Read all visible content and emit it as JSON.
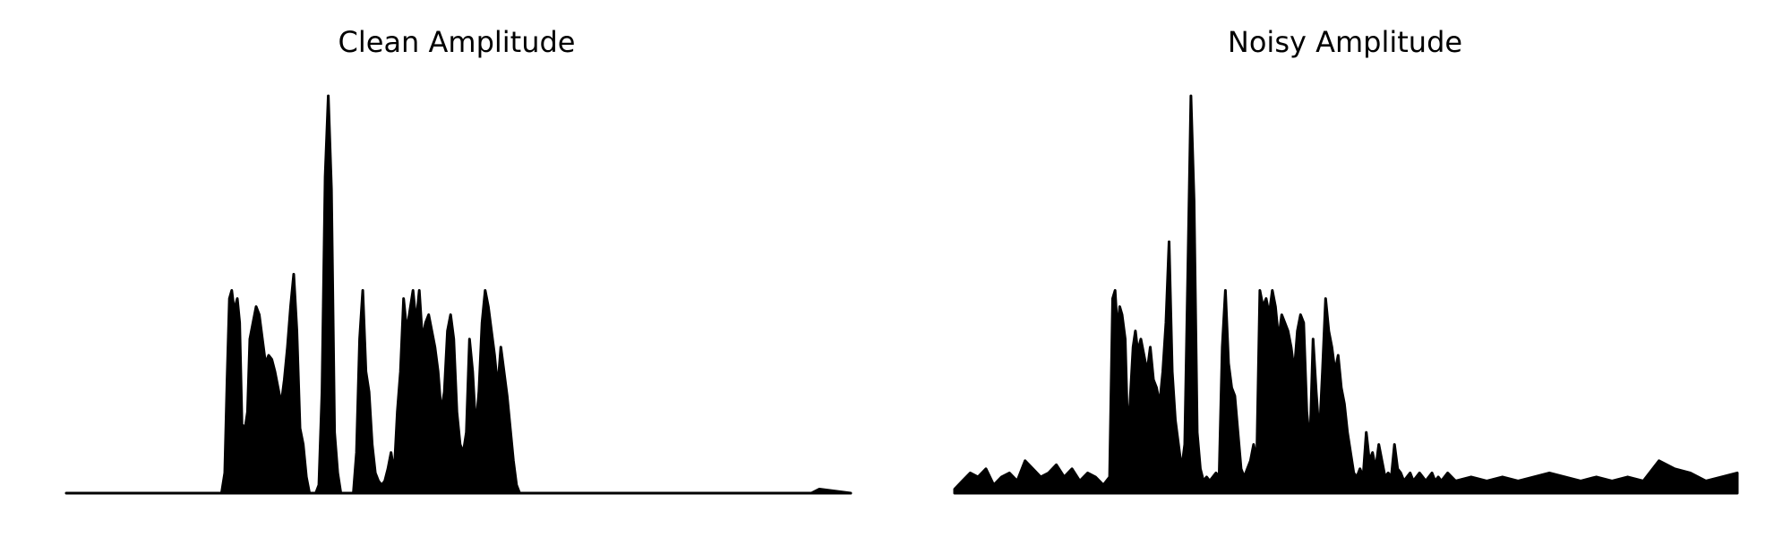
{
  "chart_data": [
    {
      "type": "area",
      "title": "Clean Amplitude",
      "xlabel": "",
      "ylabel": "",
      "xlim": [
        0,
        1000
      ],
      "ylim": [
        0,
        1.0
      ],
      "axes_visible": false,
      "grid": false,
      "color": "#000000",
      "x": [
        0,
        60,
        100,
        198,
        202,
        205,
        208,
        211,
        214,
        218,
        221,
        224,
        228,
        231,
        234,
        238,
        242,
        246,
        250,
        254,
        258,
        262,
        266,
        270,
        274,
        278,
        282,
        286,
        290,
        294,
        298,
        302,
        306,
        310,
        314,
        318,
        322,
        326,
        330,
        334,
        338,
        342,
        346,
        350,
        354,
        358,
        362,
        366,
        370,
        374,
        378,
        382,
        386,
        390,
        394,
        398,
        402,
        406,
        410,
        414,
        418,
        422,
        426,
        430,
        434,
        438,
        442,
        446,
        450,
        454,
        458,
        462,
        466,
        470,
        474,
        478,
        482,
        486,
        490,
        494,
        498,
        502,
        506,
        510,
        514,
        518,
        522,
        526,
        530,
        534,
        538,
        542,
        546,
        550,
        554,
        558,
        562,
        566,
        570,
        574,
        578,
        582,
        586,
        590,
        594,
        598,
        602,
        606,
        610,
        614,
        618,
        622,
        626,
        630,
        640,
        700,
        800,
        900,
        950,
        960,
        1000
      ],
      "y": [
        0.0,
        0.0,
        0.0,
        0.0,
        0.05,
        0.28,
        0.48,
        0.5,
        0.45,
        0.48,
        0.42,
        0.17,
        0.16,
        0.2,
        0.38,
        0.42,
        0.46,
        0.44,
        0.38,
        0.32,
        0.34,
        0.33,
        0.3,
        0.26,
        0.22,
        0.28,
        0.36,
        0.46,
        0.54,
        0.4,
        0.16,
        0.12,
        0.04,
        0.0,
        0.0,
        0.0,
        0.02,
        0.25,
        0.78,
        0.98,
        0.75,
        0.15,
        0.05,
        0.0,
        0.0,
        0.0,
        0.0,
        0.0,
        0.1,
        0.38,
        0.5,
        0.3,
        0.25,
        0.12,
        0.05,
        0.03,
        0.02,
        0.03,
        0.06,
        0.1,
        0.05,
        0.2,
        0.3,
        0.48,
        0.4,
        0.45,
        0.5,
        0.42,
        0.5,
        0.38,
        0.42,
        0.44,
        0.4,
        0.36,
        0.3,
        0.2,
        0.25,
        0.4,
        0.44,
        0.38,
        0.2,
        0.12,
        0.1,
        0.15,
        0.38,
        0.3,
        0.16,
        0.25,
        0.42,
        0.5,
        0.46,
        0.4,
        0.34,
        0.26,
        0.36,
        0.3,
        0.24,
        0.16,
        0.08,
        0.02,
        0.0,
        0.0,
        0.0,
        0.0,
        0.0,
        0.0,
        0.0,
        0.0,
        0.0,
        0.0,
        0.0,
        0.0,
        0.0,
        0.0,
        0.0,
        0.0,
        0.0,
        0.0,
        0.0,
        0.01,
        0.0
      ]
    },
    {
      "type": "area",
      "title": "Noisy Amplitude",
      "xlabel": "",
      "ylabel": "",
      "xlim": [
        0,
        1000
      ],
      "ylim": [
        0,
        1.0
      ],
      "axes_visible": false,
      "grid": false,
      "color": "#000000",
      "x": [
        0,
        10,
        20,
        30,
        40,
        50,
        60,
        70,
        80,
        90,
        100,
        110,
        120,
        130,
        140,
        150,
        160,
        170,
        180,
        190,
        198,
        202,
        205,
        208,
        211,
        214,
        218,
        221,
        224,
        228,
        231,
        234,
        238,
        242,
        246,
        250,
        254,
        258,
        262,
        266,
        270,
        274,
        278,
        282,
        286,
        290,
        294,
        298,
        302,
        306,
        310,
        314,
        318,
        322,
        326,
        330,
        334,
        338,
        342,
        346,
        350,
        354,
        358,
        362,
        366,
        370,
        374,
        378,
        382,
        386,
        390,
        394,
        398,
        402,
        406,
        410,
        414,
        418,
        422,
        426,
        430,
        434,
        438,
        442,
        446,
        450,
        454,
        458,
        462,
        466,
        470,
        474,
        478,
        482,
        486,
        490,
        494,
        498,
        502,
        506,
        510,
        514,
        518,
        522,
        526,
        530,
        534,
        538,
        542,
        546,
        550,
        554,
        558,
        562,
        566,
        570,
        574,
        578,
        582,
        586,
        590,
        594,
        598,
        602,
        606,
        610,
        614,
        618,
        622,
        626,
        630,
        640,
        660,
        680,
        700,
        720,
        740,
        760,
        780,
        800,
        820,
        840,
        860,
        880,
        900,
        920,
        940,
        960,
        980,
        1000
      ],
      "y": [
        0.01,
        0.03,
        0.05,
        0.04,
        0.06,
        0.02,
        0.04,
        0.05,
        0.03,
        0.08,
        0.06,
        0.04,
        0.05,
        0.07,
        0.04,
        0.06,
        0.03,
        0.05,
        0.04,
        0.02,
        0.04,
        0.48,
        0.5,
        0.4,
        0.46,
        0.44,
        0.38,
        0.16,
        0.22,
        0.36,
        0.4,
        0.35,
        0.38,
        0.34,
        0.3,
        0.36,
        0.28,
        0.26,
        0.22,
        0.3,
        0.42,
        0.62,
        0.3,
        0.18,
        0.12,
        0.06,
        0.12,
        0.55,
        0.98,
        0.72,
        0.15,
        0.06,
        0.03,
        0.04,
        0.03,
        0.04,
        0.05,
        0.04,
        0.36,
        0.5,
        0.32,
        0.26,
        0.24,
        0.15,
        0.06,
        0.04,
        0.06,
        0.08,
        0.12,
        0.08,
        0.5,
        0.46,
        0.48,
        0.44,
        0.5,
        0.46,
        0.38,
        0.44,
        0.42,
        0.4,
        0.36,
        0.3,
        0.4,
        0.44,
        0.42,
        0.2,
        0.12,
        0.38,
        0.25,
        0.14,
        0.3,
        0.48,
        0.4,
        0.36,
        0.3,
        0.34,
        0.26,
        0.22,
        0.15,
        0.1,
        0.05,
        0.04,
        0.06,
        0.04,
        0.15,
        0.08,
        0.1,
        0.06,
        0.12,
        0.08,
        0.04,
        0.05,
        0.04,
        0.12,
        0.06,
        0.05,
        0.03,
        0.04,
        0.05,
        0.03,
        0.04,
        0.05,
        0.04,
        0.03,
        0.04,
        0.05,
        0.03,
        0.04,
        0.03,
        0.04,
        0.05,
        0.03,
        0.04,
        0.03,
        0.04,
        0.03,
        0.04,
        0.05,
        0.04,
        0.03,
        0.04,
        0.03,
        0.04,
        0.03,
        0.08,
        0.06,
        0.05,
        0.03,
        0.04,
        0.05
      ]
    }
  ]
}
